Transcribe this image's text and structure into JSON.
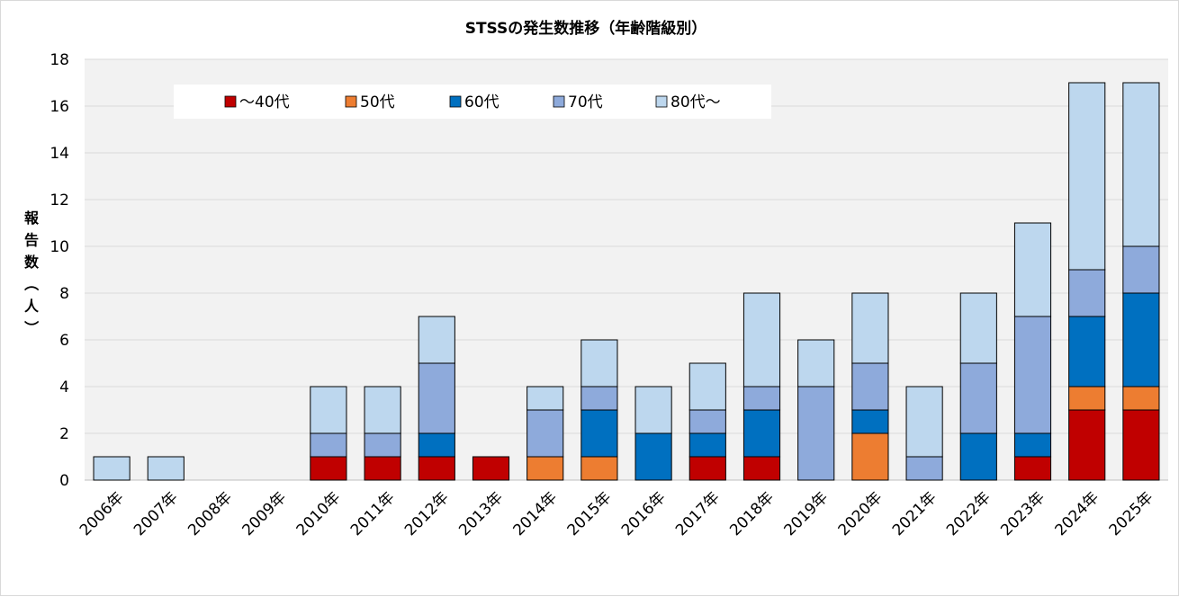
{
  "chart_data": {
    "type": "bar",
    "stacked": true,
    "title": "STSSの発生数推移（年齢階級別）",
    "ylabel": "報告数（人）",
    "ylim": [
      0,
      18
    ],
    "yticks": [
      0,
      2,
      4,
      6,
      8,
      10,
      12,
      14,
      16,
      18
    ],
    "grid": true,
    "legend_position": "top-left",
    "categories": [
      "2006年",
      "2007年",
      "2008年",
      "2009年",
      "2010年",
      "2011年",
      "2012年",
      "2013年",
      "2014年",
      "2015年",
      "2016年",
      "2017年",
      "2018年",
      "2019年",
      "2020年",
      "2021年",
      "2022年",
      "2023年",
      "2024年",
      "2025年"
    ],
    "series": [
      {
        "name": "～40代",
        "color": "#c00000",
        "values": [
          0,
          0,
          0,
          0,
          1,
          1,
          1,
          1,
          0,
          0,
          0,
          1,
          1,
          0,
          0,
          0,
          0,
          1,
          3,
          3
        ]
      },
      {
        "name": "50代",
        "color": "#ed7d31",
        "values": [
          0,
          0,
          0,
          0,
          0,
          0,
          0,
          0,
          1,
          1,
          0,
          0,
          0,
          0,
          2,
          0,
          0,
          0,
          1,
          1
        ]
      },
      {
        "name": "60代",
        "color": "#0070c0",
        "values": [
          0,
          0,
          0,
          0,
          0,
          0,
          1,
          0,
          0,
          2,
          2,
          1,
          2,
          0,
          1,
          0,
          2,
          1,
          3,
          4
        ]
      },
      {
        "name": "70代",
        "color": "#8eaadb",
        "values": [
          0,
          0,
          0,
          0,
          1,
          1,
          3,
          0,
          2,
          1,
          0,
          1,
          1,
          4,
          2,
          1,
          3,
          5,
          2,
          2
        ]
      },
      {
        "name": "80代～",
        "color": "#bdd7ee",
        "values": [
          1,
          1,
          0,
          0,
          2,
          2,
          2,
          0,
          1,
          2,
          2,
          2,
          4,
          2,
          3,
          3,
          3,
          4,
          8,
          7
        ]
      }
    ]
  }
}
